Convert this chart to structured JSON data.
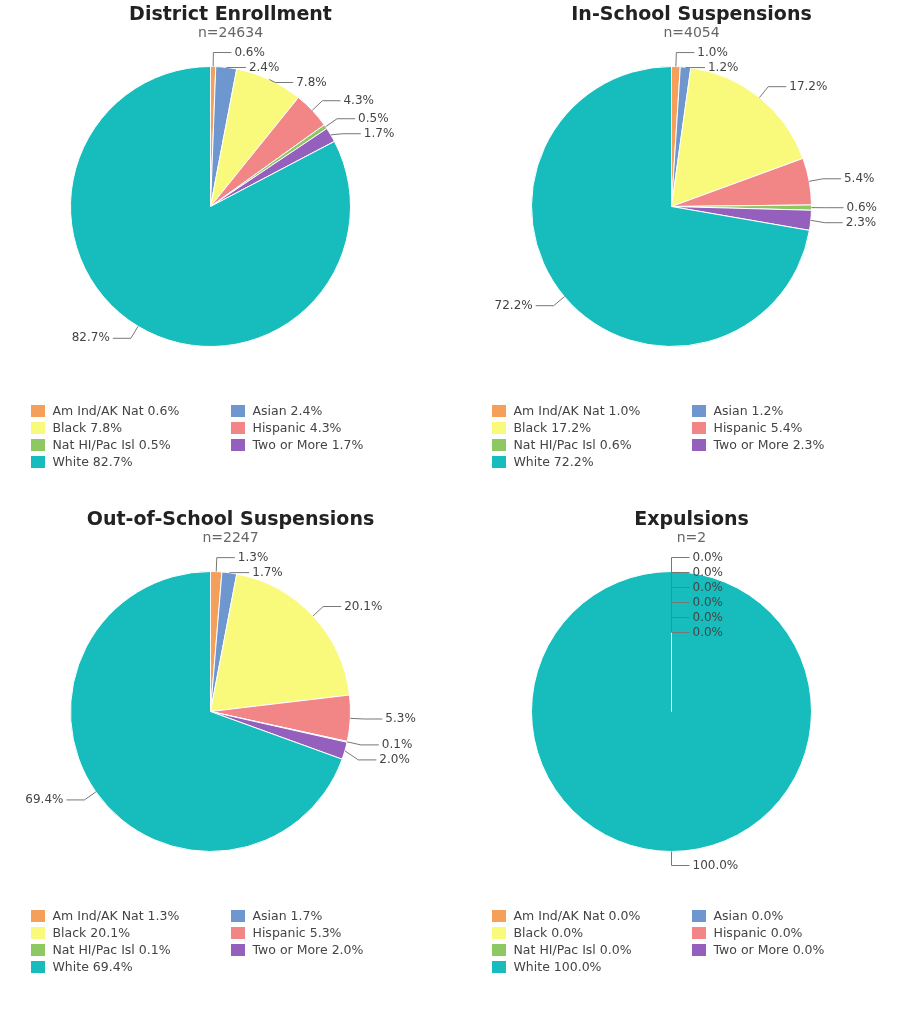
{
  "chart_data": [
    {
      "type": "pie",
      "title": "District Enrollment",
      "subtitle": "n=24634",
      "legend": "bottom",
      "categories": [
        "Am Ind/AK Nat",
        "Asian",
        "Black",
        "Hispanic",
        "Nat HI/Pac Isl",
        "Two or More",
        "White"
      ],
      "values": [
        0.6,
        2.4,
        7.8,
        4.3,
        0.5,
        1.7,
        82.7
      ],
      "value_labels": [
        "0.6%",
        "2.4%",
        "7.8%",
        "4.3%",
        "0.5%",
        "1.7%",
        "82.7%"
      ],
      "colors": [
        "#f5a05a",
        "#6f97cf",
        "#f9f97c",
        "#f28585",
        "#8dc863",
        "#9560bd",
        "#17bdbd"
      ]
    },
    {
      "type": "pie",
      "title": "In-School Suspensions",
      "subtitle": "n=4054",
      "legend": "bottom",
      "categories": [
        "Am Ind/AK Nat",
        "Asian",
        "Black",
        "Hispanic",
        "Nat HI/Pac Isl",
        "Two or More",
        "White"
      ],
      "values": [
        1.0,
        1.2,
        17.2,
        5.4,
        0.6,
        2.3,
        72.2
      ],
      "value_labels": [
        "1.0%",
        "1.2%",
        "17.2%",
        "5.4%",
        "0.6%",
        "2.3%",
        "72.2%"
      ],
      "colors": [
        "#f5a05a",
        "#6f97cf",
        "#f9f97c",
        "#f28585",
        "#8dc863",
        "#9560bd",
        "#17bdbd"
      ]
    },
    {
      "type": "pie",
      "title": "Out-of-School Suspensions",
      "subtitle": "n=2247",
      "legend": "bottom",
      "categories": [
        "Am Ind/AK Nat",
        "Asian",
        "Black",
        "Hispanic",
        "Nat HI/Pac Isl",
        "Two or More",
        "White"
      ],
      "values": [
        1.3,
        1.7,
        20.1,
        5.3,
        0.1,
        2.0,
        69.4
      ],
      "value_labels": [
        "1.3%",
        "1.7%",
        "20.1%",
        "5.3%",
        "0.1%",
        "2.0%",
        "69.4%"
      ],
      "colors": [
        "#f5a05a",
        "#6f97cf",
        "#f9f97c",
        "#f28585",
        "#8dc863",
        "#9560bd",
        "#17bdbd"
      ]
    },
    {
      "type": "pie",
      "title": "Expulsions",
      "subtitle": "n=2",
      "legend": "bottom",
      "categories": [
        "Am Ind/AK Nat",
        "Asian",
        "Black",
        "Hispanic",
        "Nat HI/Pac Isl",
        "Two or More",
        "White"
      ],
      "values": [
        0,
        0,
        0,
        0,
        0,
        0,
        100
      ],
      "value_labels": [
        "0.0%",
        "0.0%",
        "0.0%",
        "0.0%",
        "0.0%",
        "0.0%",
        "100.0%"
      ],
      "colors": [
        "#f5a05a",
        "#6f97cf",
        "#f9f97c",
        "#f28585",
        "#8dc863",
        "#9560bd",
        "#17bdbd"
      ]
    }
  ]
}
